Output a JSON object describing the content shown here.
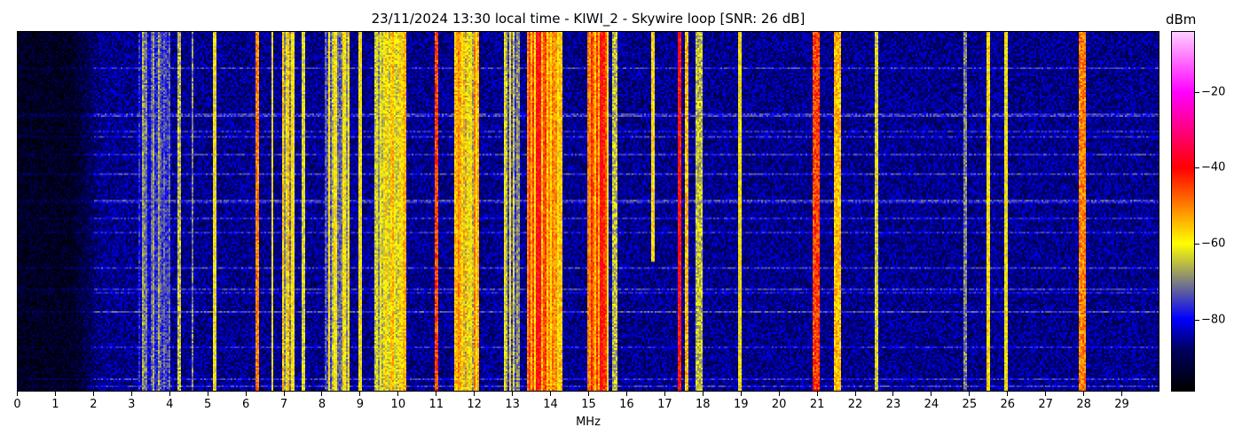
{
  "chart_data": {
    "type": "heatmap",
    "title": "23/11/2024 13:30 local time - KIWI_2 - Skywire loop [SNR: 26 dB]",
    "xlabel": "MHz",
    "xlim": [
      0,
      30
    ],
    "x_ticks": [
      "0",
      "1",
      "2",
      "3",
      "4",
      "5",
      "6",
      "7",
      "8",
      "9",
      "10",
      "11",
      "12",
      "13",
      "14",
      "15",
      "16",
      "17",
      "18",
      "19",
      "20",
      "21",
      "22",
      "23",
      "24",
      "25",
      "26",
      "27",
      "28",
      "29"
    ],
    "colorbar": {
      "label": "dBm",
      "range": [
        -99,
        -4
      ],
      "ticks": [
        "−20",
        "−40",
        "−60",
        "−80"
      ],
      "tick_values": [
        -20,
        -40,
        -60,
        -80
      ],
      "colormap": [
        {
          "v": -99,
          "color": "#000000"
        },
        {
          "v": -88,
          "color": "#000060"
        },
        {
          "v": -80,
          "color": "#0000ff"
        },
        {
          "v": -70,
          "color": "#808080"
        },
        {
          "v": -60,
          "color": "#ffff00"
        },
        {
          "v": -50,
          "color": "#ff8000"
        },
        {
          "v": -40,
          "color": "#ff0000"
        },
        {
          "v": -20,
          "color": "#ff00ff"
        },
        {
          "v": -4,
          "color": "#ffd0ff"
        }
      ]
    },
    "noise_floor_dbm": [
      {
        "from": 0,
        "to": 1.7,
        "level": -95
      },
      {
        "from": 1.7,
        "to": 30,
        "level": -86
      }
    ],
    "signals": [
      {
        "mhz": 3.6,
        "width": 0.8,
        "level": -76
      },
      {
        "mhz": 4.25,
        "width": 0.04,
        "level": -65
      },
      {
        "mhz": 4.6,
        "width": 0.03,
        "level": -70
      },
      {
        "mhz": 5.2,
        "width": 0.05,
        "level": -60
      },
      {
        "mhz": 6.3,
        "width": 0.05,
        "level": -50
      },
      {
        "mhz": 6.7,
        "width": 0.04,
        "level": -60
      },
      {
        "mhz": 7.1,
        "width": 0.3,
        "level": -62
      },
      {
        "mhz": 7.5,
        "width": 0.04,
        "level": -62
      },
      {
        "mhz": 8.4,
        "width": 0.6,
        "level": -66
      },
      {
        "mhz": 9.0,
        "width": 0.05,
        "level": -60
      },
      {
        "mhz": 9.8,
        "width": 0.8,
        "level": -62
      },
      {
        "mhz": 11.0,
        "width": 0.04,
        "level": -45
      },
      {
        "mhz": 11.8,
        "width": 0.6,
        "level": -58
      },
      {
        "mhz": 13.0,
        "width": 0.4,
        "level": -66
      },
      {
        "mhz": 13.85,
        "width": 0.9,
        "level": -52
      },
      {
        "mhz": 13.7,
        "width": 0.08,
        "level": -40
      },
      {
        "mhz": 15.25,
        "width": 0.5,
        "level": -50
      },
      {
        "mhz": 15.35,
        "width": 0.08,
        "level": -40
      },
      {
        "mhz": 15.7,
        "width": 0.1,
        "level": -65
      },
      {
        "mhz": 16.7,
        "width": 0.05,
        "level": -58
      },
      {
        "mhz": 17.4,
        "width": 0.05,
        "level": -40
      },
      {
        "mhz": 17.6,
        "width": 0.05,
        "level": -55
      },
      {
        "mhz": 17.9,
        "width": 0.15,
        "level": -65
      },
      {
        "mhz": 19.0,
        "width": 0.06,
        "level": -60
      },
      {
        "mhz": 21.0,
        "width": 0.12,
        "level": -45
      },
      {
        "mhz": 21.55,
        "width": 0.15,
        "level": -55
      },
      {
        "mhz": 22.6,
        "width": 0.05,
        "level": -62
      },
      {
        "mhz": 24.9,
        "width": 0.04,
        "level": -70
      },
      {
        "mhz": 25.5,
        "width": 0.05,
        "level": -58
      },
      {
        "mhz": 26.0,
        "width": 0.05,
        "level": -60
      },
      {
        "mhz": 28.0,
        "width": 0.12,
        "level": -50
      }
    ]
  }
}
